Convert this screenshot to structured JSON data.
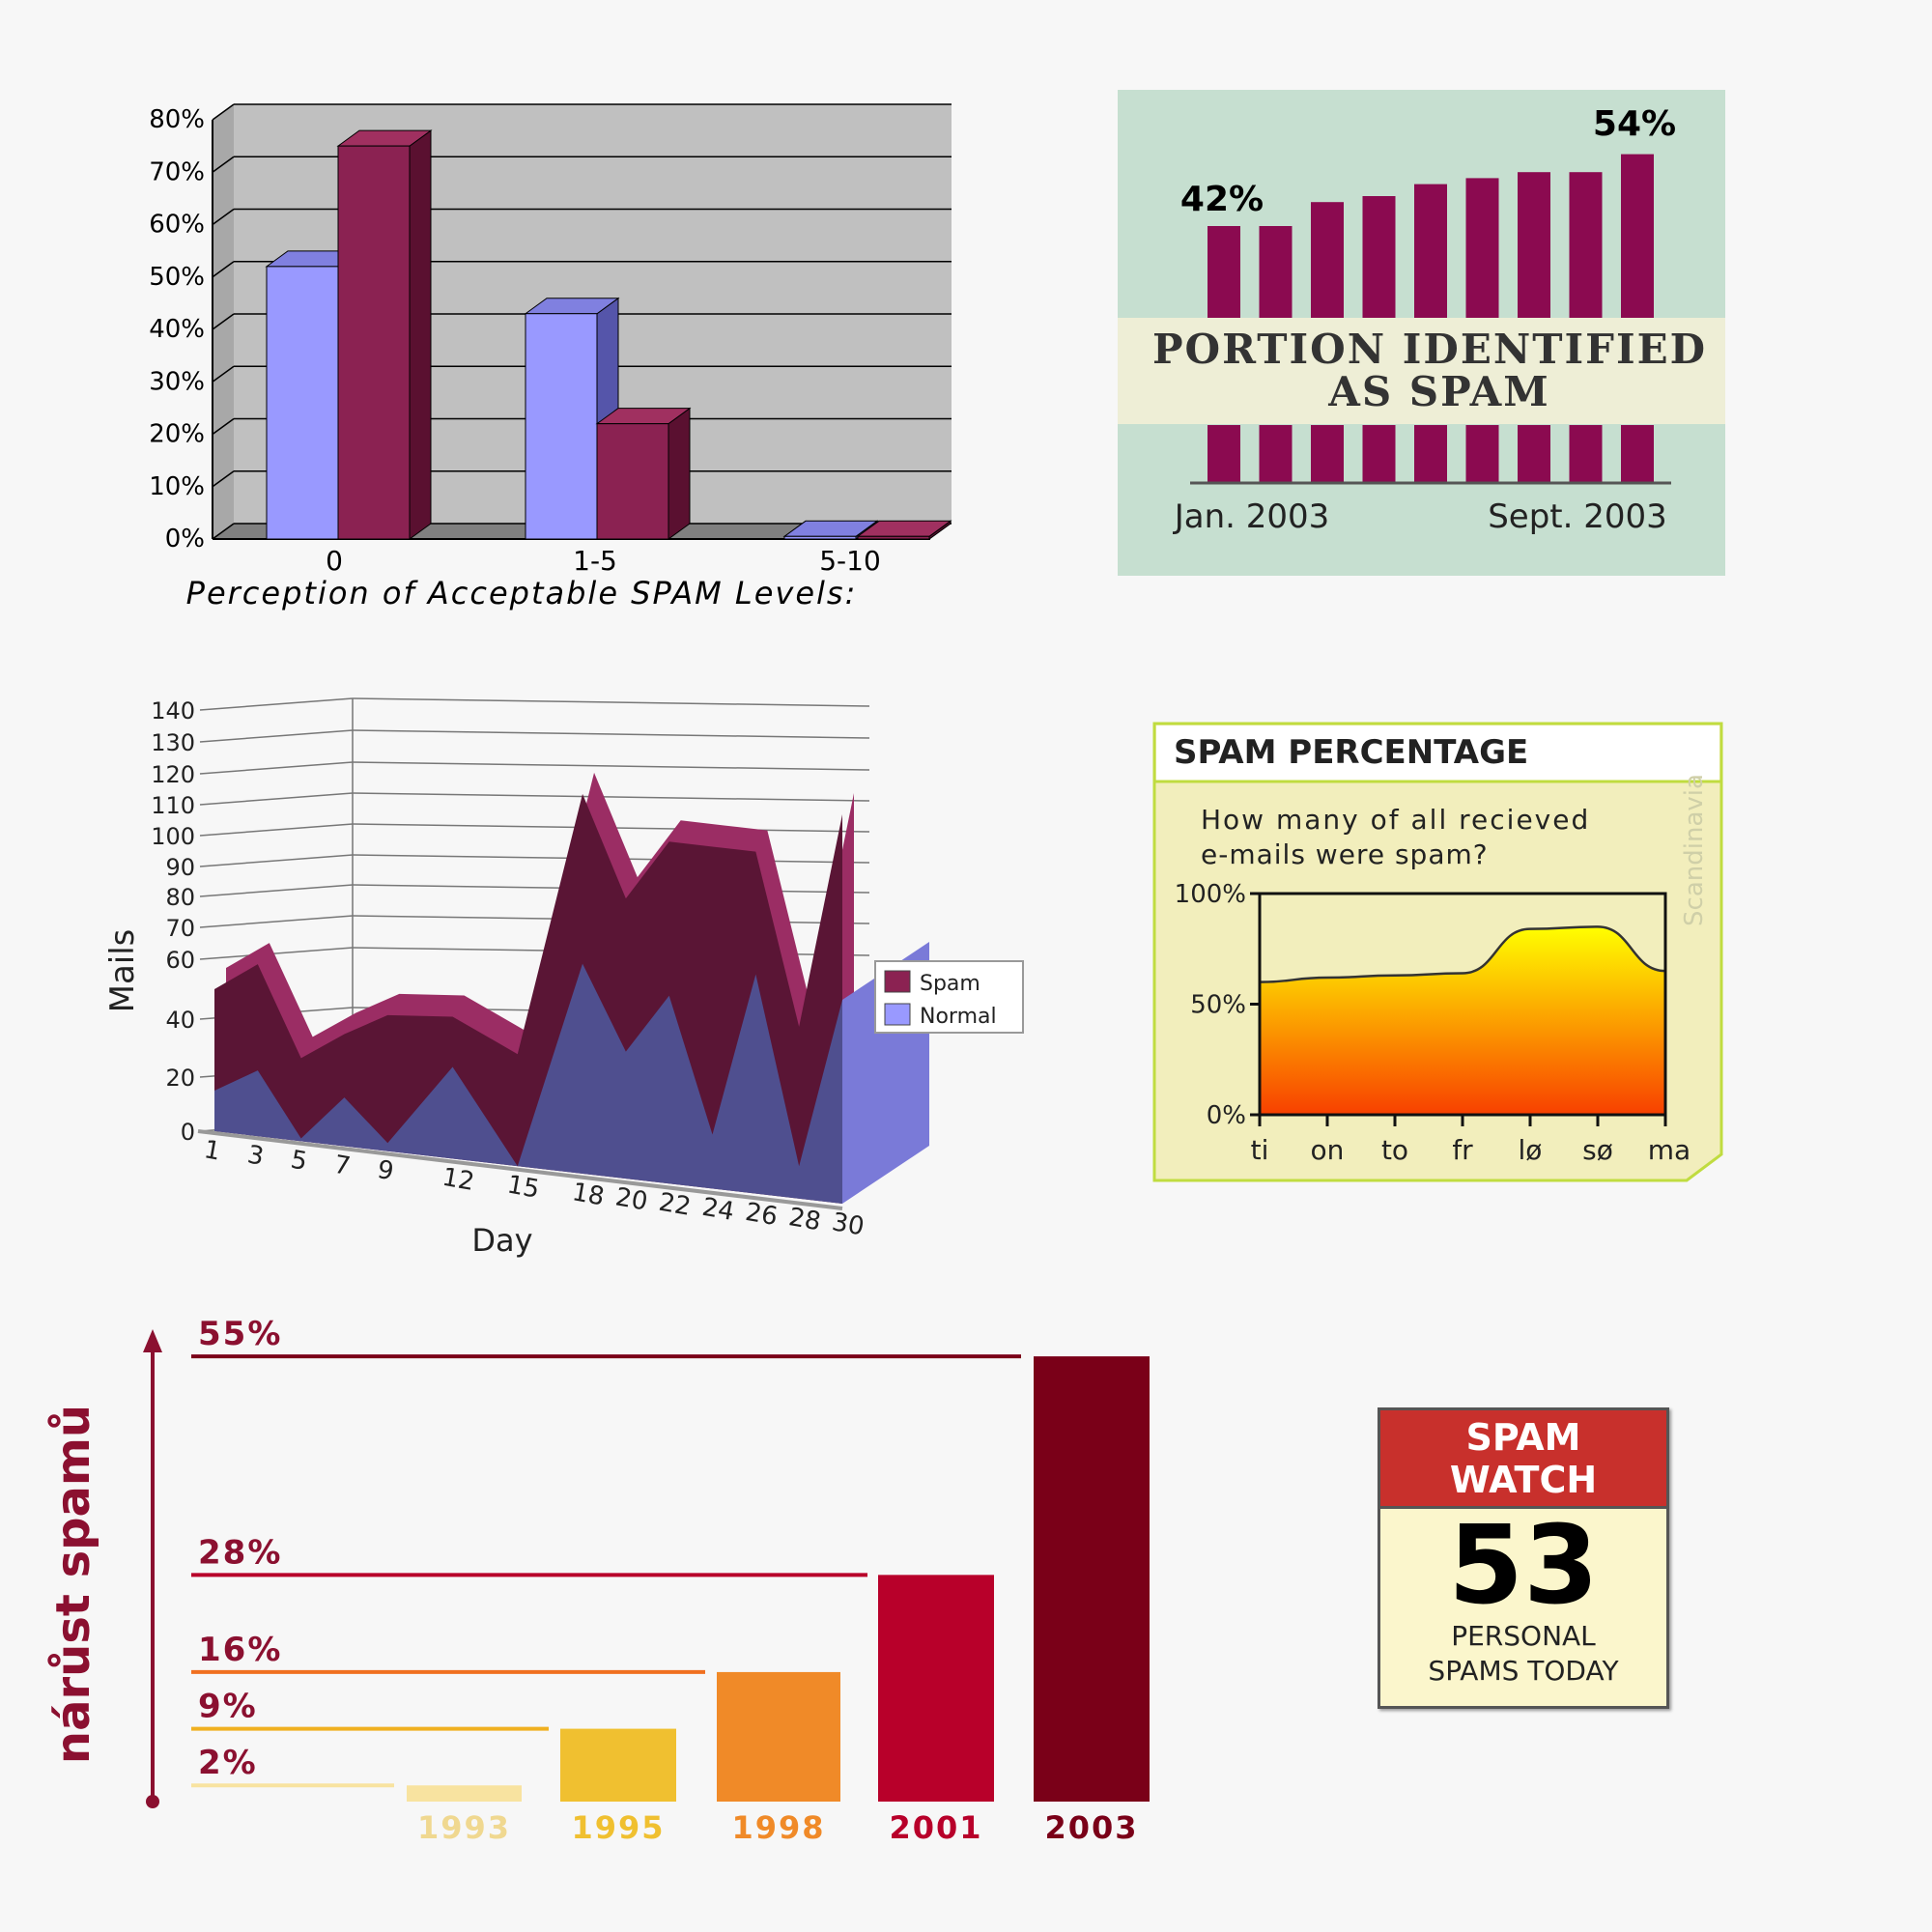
{
  "chart_data": [
    {
      "type": "bar",
      "title": "",
      "xlabel": "Perception of Acceptable SPAM Levels:",
      "ylabel": "",
      "categories": [
        "0",
        "1-5",
        "5-10"
      ],
      "yticks": [
        "0%",
        "10%",
        "20%",
        "30%",
        "40%",
        "50%",
        "60%",
        "70%",
        "80%"
      ],
      "ylim": [
        0,
        80
      ],
      "series": [
        {
          "name": "Normal",
          "color": "#9999ff",
          "values": [
            52,
            43,
            0.5
          ]
        },
        {
          "name": "Spam",
          "color": "#8b2252",
          "values": [
            75,
            22,
            0.5
          ]
        }
      ]
    },
    {
      "type": "bar",
      "title": "PORTION IDENTIFIED AS SPAM",
      "start_label": "42%",
      "end_label": "54%",
      "x_start": "Jan. 2003",
      "x_end": "Sept. 2003",
      "color": "#8b0a50",
      "values": [
        42,
        42,
        46,
        47,
        49,
        50,
        51,
        51,
        54
      ]
    },
    {
      "type": "area",
      "title": "",
      "xlabel": "Day",
      "ylabel": "Mails",
      "yticks": [
        "0",
        "20",
        "40",
        "60",
        "70",
        "80",
        "90",
        "100",
        "110",
        "120",
        "130",
        "140"
      ],
      "xticks": [
        "1",
        "3",
        "5",
        "7",
        "9",
        "12",
        "15",
        "18",
        "20",
        "22",
        "24",
        "26",
        "28",
        "30"
      ],
      "ylim": [
        0,
        140
      ],
      "legend": [
        "Spam",
        "Normal"
      ],
      "legend_position": "right",
      "x": [
        1,
        3,
        5,
        7,
        9,
        12,
        15,
        18,
        20,
        22,
        24,
        26,
        28,
        30
      ],
      "series": [
        {
          "name": "Normal",
          "color": "#4f4f8f",
          "values": [
            15,
            24,
            1,
            18,
            3,
            33,
            0,
            72,
            45,
            65,
            20,
            75,
            12,
            70
          ]
        },
        {
          "name": "Spam",
          "color": "#8b2252",
          "values": [
            35,
            36,
            29,
            22,
            45,
            17,
            40,
            55,
            50,
            50,
            95,
            40,
            48,
            60
          ]
        }
      ]
    },
    {
      "type": "area",
      "title": "SPAM PERCENTAGE",
      "subtitle": "How many of all recieved e-mails were spam?",
      "watermark": "Scandinavia",
      "categories": [
        "ti",
        "on",
        "to",
        "fr",
        "lø",
        "sø",
        "ma"
      ],
      "yticks": [
        "0%",
        "50%",
        "100%"
      ],
      "ylim": [
        0,
        100
      ],
      "values": [
        60,
        62,
        63,
        64,
        84,
        85,
        65
      ]
    },
    {
      "type": "bar",
      "ylabel": "nárůst spamů",
      "categories": [
        "1993",
        "1995",
        "1998",
        "2001",
        "2003"
      ],
      "values": [
        2,
        9,
        16,
        28,
        55
      ],
      "labels": [
        "2%",
        "9%",
        "16%",
        "28%",
        "55%"
      ],
      "colors": [
        "#f8e3a0",
        "#f0c030",
        "#f08a28",
        "#b8002a",
        "#7a0018"
      ]
    }
  ],
  "spam_watch": {
    "title_line1": "SPAM",
    "title_line2": "WATCH",
    "count": "53",
    "caption_line1": "PERSONAL",
    "caption_line2": "SPAMS TODAY"
  }
}
